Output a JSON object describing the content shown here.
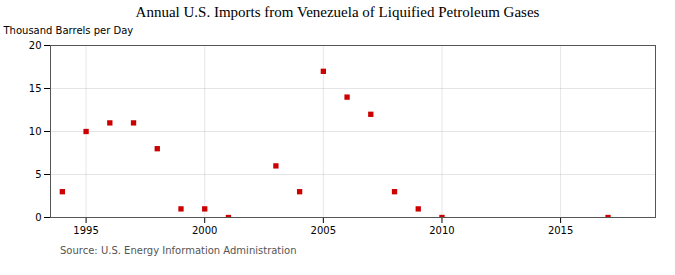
{
  "chart_data": {
    "type": "scatter",
    "title": "Annual U.S. Imports from Venezuela of Liquified Petroleum Gases",
    "ylabel": "Thousand Barrels per Day",
    "source": "Source: U.S. Energy Information Administration",
    "x": [
      1994,
      1995,
      1996,
      1997,
      1998,
      1999,
      2000,
      2001,
      2003,
      2004,
      2005,
      2006,
      2007,
      2008,
      2009,
      2010,
      2017
    ],
    "values": [
      3,
      10,
      11,
      11,
      8,
      1,
      1,
      0,
      6,
      3,
      17,
      14,
      12,
      3,
      1,
      0,
      0
    ],
    "color": "#cc0000",
    "marker": "square",
    "xlim": [
      1993.5,
      2019
    ],
    "ylim": [
      0,
      20
    ],
    "xticks": [
      1995,
      2000,
      2005,
      2010,
      2015
    ],
    "yticks": [
      0,
      5,
      10,
      15,
      20
    ],
    "grid": true
  }
}
